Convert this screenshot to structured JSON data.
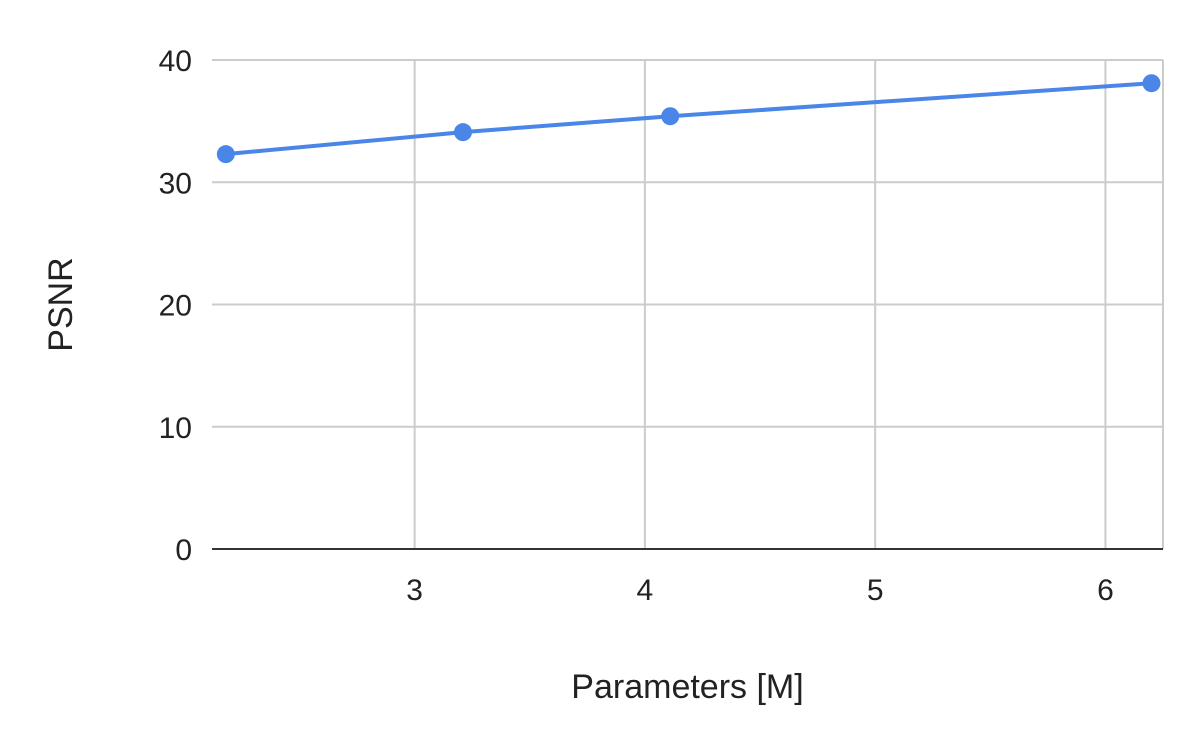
{
  "chart_data": {
    "type": "line",
    "title": "",
    "xlabel": "Parameters [M]",
    "ylabel": "PSNR",
    "xlim": [
      2.12,
      6.25
    ],
    "ylim": [
      0,
      40
    ],
    "x_ticks": [
      3,
      4,
      5,
      6
    ],
    "y_ticks": [
      0,
      10,
      20,
      30,
      40
    ],
    "grid": true,
    "legend": "none",
    "series": [
      {
        "name": "PSNR",
        "color": "#4a86e8",
        "points": [
          {
            "x": 2.18,
            "y": 32.3
          },
          {
            "x": 3.21,
            "y": 34.1
          },
          {
            "x": 4.11,
            "y": 35.4
          },
          {
            "x": 6.2,
            "y": 38.1
          }
        ]
      }
    ]
  }
}
